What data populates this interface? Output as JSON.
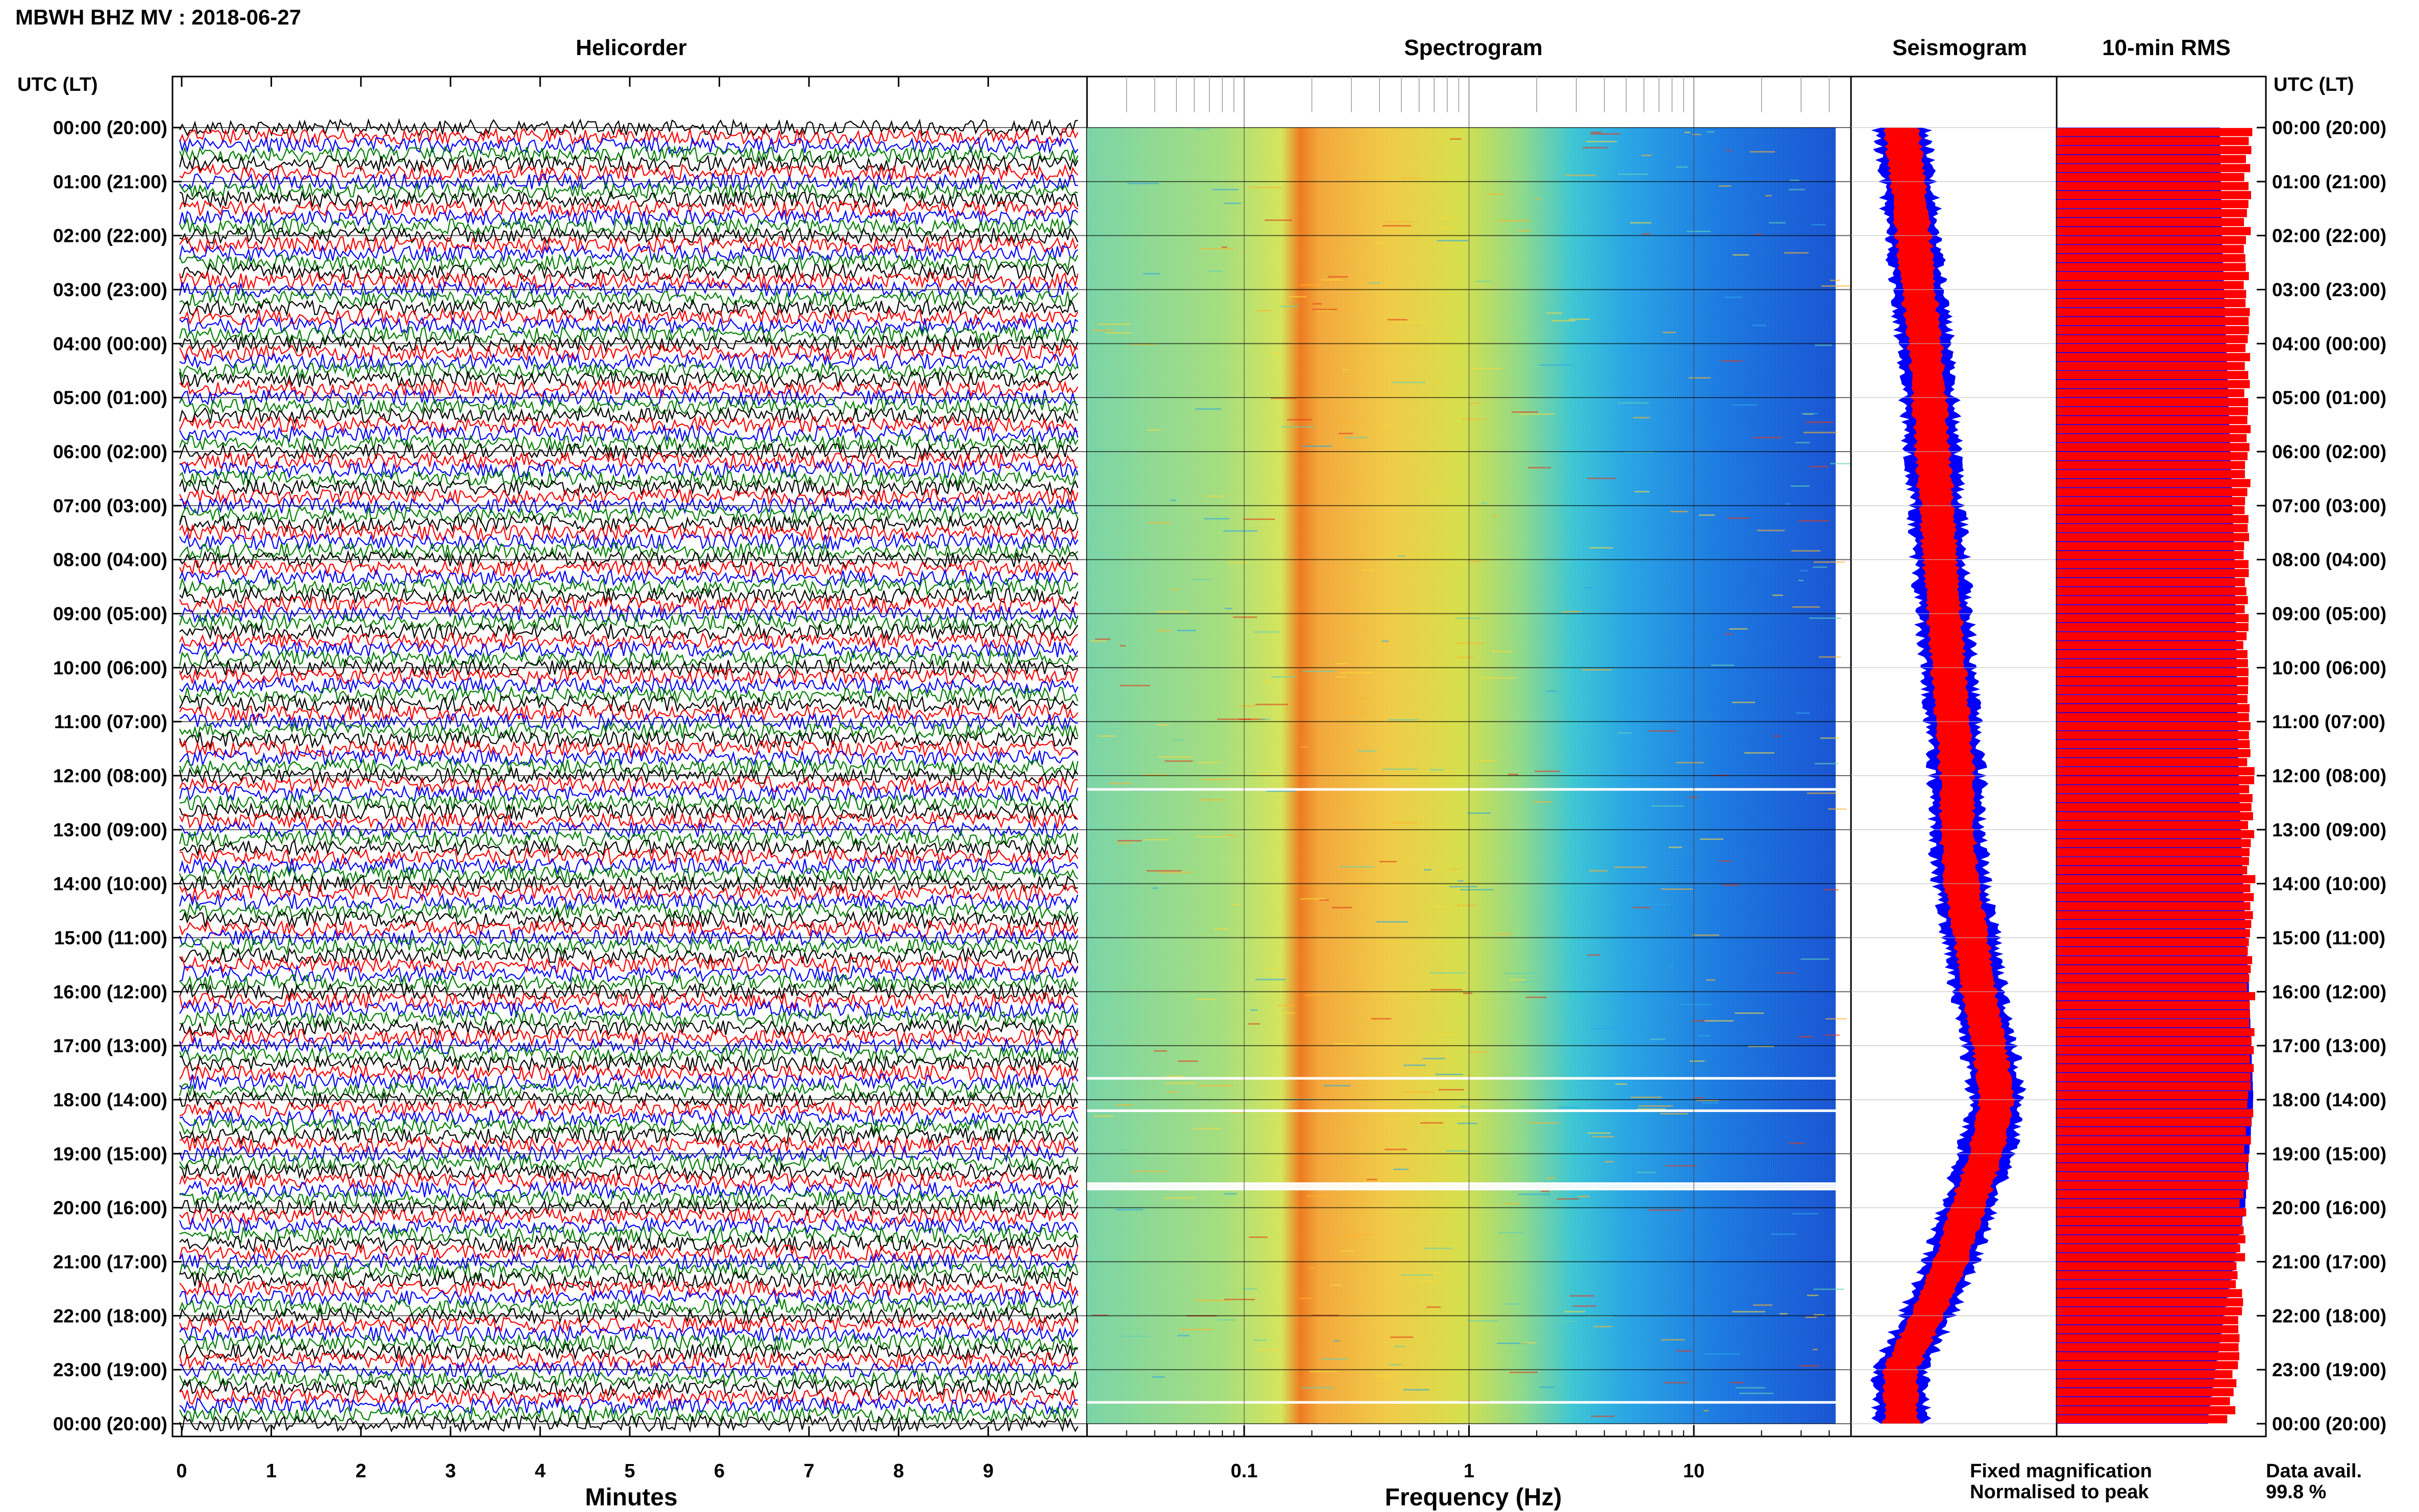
{
  "header": {
    "station_title": "MBWH BHZ MV : 2018-06-27",
    "left_axis_label": "UTC (LT)",
    "right_axis_label": "UTC (LT)"
  },
  "panels": {
    "helicorder": {
      "title": "Helicorder",
      "xlabel": "Minutes"
    },
    "spectrogram": {
      "title": "Spectrogram",
      "xlabel": "Frequency (Hz)"
    },
    "seismogram": {
      "title": "Seismogram"
    },
    "rms": {
      "title": "10-min RMS"
    }
  },
  "legend": {
    "fixed_label": "Fixed magnification",
    "normalised_label": "Normalised to peak",
    "fixed_color": "#0000ff",
    "normalised_color": "#ff0000"
  },
  "availability": {
    "label": "Data avail.",
    "value": "99.8 %"
  },
  "chart_data": [
    {
      "type": "line",
      "panel": "helicorder",
      "title": "Helicorder",
      "xlabel": "Minutes",
      "ylabel": "UTC (LT)",
      "x_ticks": [
        "0",
        "1",
        "2",
        "3",
        "4",
        "5",
        "6",
        "7",
        "8",
        "9"
      ],
      "xlim": [
        0,
        10
      ],
      "y_ticks": [
        "00:00 (20:00)",
        "01:00 (21:00)",
        "02:00 (22:00)",
        "03:00 (23:00)",
        "04:00 (00:00)",
        "05:00 (01:00)",
        "06:00 (02:00)",
        "07:00 (03:00)",
        "08:00 (04:00)",
        "09:00 (05:00)",
        "10:00 (06:00)",
        "11:00 (07:00)",
        "12:00 (08:00)",
        "13:00 (09:00)",
        "14:00 (10:00)",
        "15:00 (11:00)",
        "16:00 (12:00)",
        "17:00 (13:00)",
        "18:00 (14:00)",
        "19:00 (15:00)",
        "20:00 (16:00)",
        "21:00 (17:00)",
        "22:00 (18:00)",
        "23:00 (19:00)",
        "00:00 (20:00)"
      ],
      "trace_colors": [
        "#000000",
        "#ff0000",
        "#0000ff",
        "#008000"
      ],
      "traces_per_hour": 6
    },
    {
      "type": "heatmap",
      "panel": "spectrogram",
      "title": "Spectrogram",
      "xlabel": "Frequency (Hz)",
      "x_scale": "log",
      "x_ticks": [
        "0.1",
        "1",
        "10"
      ],
      "xlim": [
        0.02,
        50
      ],
      "dominant_band_hz": [
        0.2,
        0.3
      ],
      "gap_hours": [
        12.25,
        17.6,
        18.2,
        19.55,
        19.6,
        19.65,
        23.6
      ]
    },
    {
      "type": "area",
      "panel": "seismogram",
      "title": "Seismogram",
      "series": [
        {
          "name": "Fixed magnification",
          "color": "#0000ff"
        },
        {
          "name": "Normalised to peak",
          "color": "#ff0000"
        }
      ],
      "hours": [
        0,
        1,
        2,
        3,
        4,
        5,
        6,
        7,
        8,
        9,
        10,
        11,
        12,
        13,
        14,
        15,
        16,
        17,
        18,
        19,
        20,
        21,
        22,
        23,
        24
      ],
      "relative_amplitude": [
        0.28,
        0.34,
        0.39,
        0.44,
        0.5,
        0.54,
        0.57,
        0.61,
        0.64,
        0.68,
        0.72,
        0.76,
        0.8,
        0.8,
        0.84,
        0.93,
        1.0,
        1.1,
        1.17,
        1.07,
        0.9,
        0.74,
        0.52,
        0.27,
        0.28
      ]
    },
    {
      "type": "bar",
      "panel": "rms",
      "title": "10-min RMS",
      "series": [
        {
          "name": "Fixed magnification",
          "color": "#0000ff"
        },
        {
          "name": "Normalised to peak",
          "color": "#ff0000"
        }
      ],
      "hours": [
        0,
        2,
        4,
        6,
        8,
        10,
        12,
        14,
        16,
        18,
        20,
        22,
        24
      ],
      "fixed_level": [
        0.78,
        0.79,
        0.81,
        0.83,
        0.85,
        0.86,
        0.87,
        0.89,
        0.92,
        0.94,
        0.9,
        0.8,
        0.72
      ],
      "normalised_level": [
        0.94,
        0.93,
        0.93,
        0.94,
        0.93,
        0.93,
        0.95,
        0.95,
        0.95,
        0.95,
        0.91,
        0.89,
        0.85
      ]
    }
  ]
}
